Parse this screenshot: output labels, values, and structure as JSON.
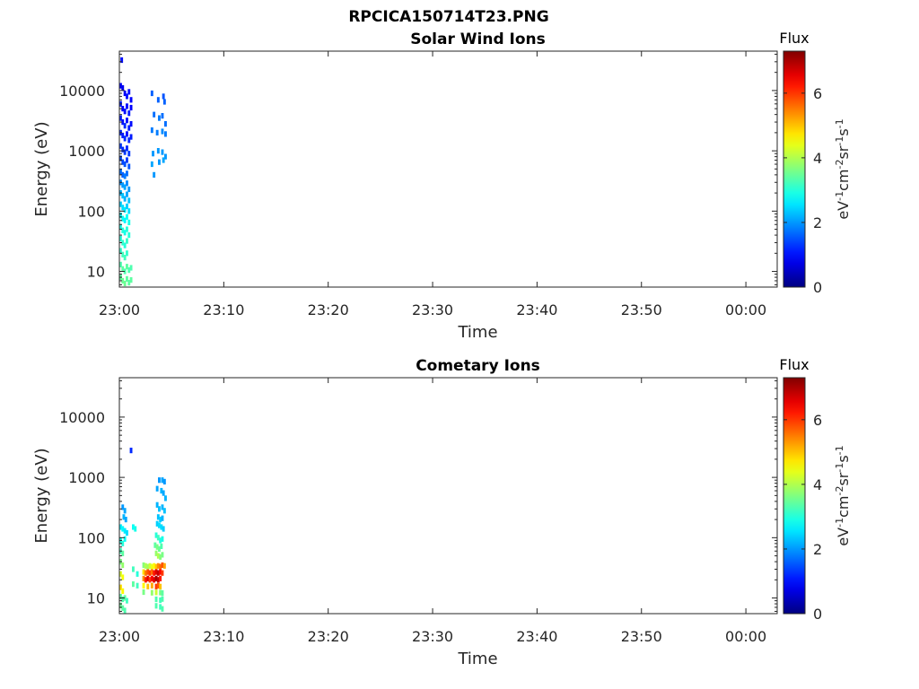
{
  "figure_title": "RPCICA150714T23.PNG",
  "chart_data": [
    {
      "type": "heatmap",
      "title": "Solar Wind Ions",
      "xlabel": "Time",
      "ylabel": "Energy (eV)",
      "x_ticklabels": [
        "23:00",
        "23:10",
        "23:20",
        "23:30",
        "23:40",
        "23:50",
        "00:00"
      ],
      "x_range_minutes": [
        0,
        63
      ],
      "y_scale": "log",
      "y_range": [
        5.5,
        45000
      ],
      "y_ticklabels": [
        "10",
        "100",
        "1000",
        "10000"
      ],
      "colorbar": {
        "title": "Flux",
        "label": "eV-1cm-2sr-1s-1",
        "range": [
          0,
          7.3
        ],
        "ticks": [
          "0",
          "2",
          "4",
          "6"
        ]
      },
      "cells": [
        [
          0.1,
          32000,
          1.0
        ],
        [
          0.0,
          12000,
          0.9
        ],
        [
          0.2,
          11000,
          0.8
        ],
        [
          0.4,
          9000,
          0.9
        ],
        [
          0.6,
          8000,
          1.0
        ],
        [
          0.8,
          9500,
          1.0
        ],
        [
          1.0,
          7000,
          0.9
        ],
        [
          0.0,
          6000,
          1.1
        ],
        [
          0.2,
          5000,
          0.9
        ],
        [
          0.4,
          4500,
          1.0
        ],
        [
          0.6,
          5500,
          1.0
        ],
        [
          0.8,
          4200,
          1.1
        ],
        [
          1.0,
          5200,
          0.9
        ],
        [
          0.0,
          3500,
          1.1
        ],
        [
          0.2,
          3000,
          1.0
        ],
        [
          0.4,
          2600,
          1.2
        ],
        [
          0.6,
          3200,
          1.0
        ],
        [
          0.8,
          2400,
          1.1
        ],
        [
          1.0,
          2800,
          1.0
        ],
        [
          0.0,
          2000,
          1.2
        ],
        [
          0.2,
          1800,
          1.1
        ],
        [
          0.4,
          1600,
          1.2
        ],
        [
          0.6,
          1900,
          1.0
        ],
        [
          0.8,
          1500,
          1.2
        ],
        [
          1.0,
          1700,
          1.1
        ],
        [
          0.0,
          1200,
          1.3
        ],
        [
          0.2,
          1050,
          1.2
        ],
        [
          0.4,
          950,
          1.3
        ],
        [
          0.6,
          1100,
          1.2
        ],
        [
          0.8,
          900,
          1.3
        ],
        [
          0.0,
          750,
          1.4
        ],
        [
          0.2,
          650,
          1.4
        ],
        [
          0.4,
          600,
          1.5
        ],
        [
          0.6,
          700,
          1.3
        ],
        [
          0.8,
          550,
          1.5
        ],
        [
          0.0,
          450,
          1.7
        ],
        [
          0.2,
          400,
          1.6
        ],
        [
          0.4,
          380,
          1.8
        ],
        [
          0.6,
          420,
          1.7
        ],
        [
          0.0,
          300,
          1.9
        ],
        [
          0.2,
          270,
          2.0
        ],
        [
          0.4,
          250,
          2.1
        ],
        [
          0.6,
          290,
          1.9
        ],
        [
          0.8,
          230,
          2.0
        ],
        [
          0.0,
          200,
          2.2
        ],
        [
          0.2,
          180,
          2.3
        ],
        [
          0.4,
          160,
          2.2
        ],
        [
          0.6,
          190,
          2.1
        ],
        [
          0.8,
          150,
          2.3
        ],
        [
          0.0,
          130,
          2.4
        ],
        [
          0.2,
          115,
          2.5
        ],
        [
          0.4,
          105,
          2.6
        ],
        [
          0.6,
          120,
          2.4
        ],
        [
          0.8,
          100,
          2.5
        ],
        [
          0.0,
          85,
          2.7
        ],
        [
          0.2,
          75,
          2.8
        ],
        [
          0.4,
          70,
          2.7
        ],
        [
          0.6,
          80,
          2.8
        ],
        [
          0.8,
          65,
          2.9
        ],
        [
          0.0,
          55,
          2.9
        ],
        [
          0.2,
          48,
          3.0
        ],
        [
          0.4,
          44,
          2.9
        ],
        [
          0.6,
          50,
          3.0
        ],
        [
          0.8,
          40,
          3.0
        ],
        [
          0.0,
          35,
          3.0
        ],
        [
          0.2,
          30,
          3.1
        ],
        [
          0.4,
          27,
          3.0
        ],
        [
          0.6,
          32,
          3.1
        ],
        [
          0.0,
          22,
          3.1
        ],
        [
          0.2,
          19,
          3.2
        ],
        [
          0.4,
          17,
          3.2
        ],
        [
          0.6,
          20,
          3.1
        ],
        [
          0.0,
          13,
          3.3
        ],
        [
          0.2,
          11,
          3.4
        ],
        [
          0.4,
          10,
          3.3
        ],
        [
          0.6,
          12,
          3.4
        ],
        [
          0.8,
          10.5,
          3.3
        ],
        [
          1.0,
          11.5,
          3.3
        ],
        [
          0.0,
          8,
          3.4
        ],
        [
          0.2,
          7,
          3.5
        ],
        [
          0.4,
          6.3,
          3.5
        ],
        [
          0.6,
          7.5,
          3.4
        ],
        [
          0.8,
          6.5,
          3.4
        ],
        [
          1.0,
          7.2,
          3.4
        ],
        [
          3.0,
          9000,
          1.6
        ],
        [
          3.6,
          7000,
          1.6
        ],
        [
          4.1,
          8000,
          1.5
        ],
        [
          4.2,
          6500,
          1.6
        ],
        [
          3.2,
          4000,
          1.7
        ],
        [
          3.7,
          3500,
          1.8
        ],
        [
          4.0,
          3800,
          1.7
        ],
        [
          4.3,
          2800,
          1.7
        ],
        [
          3.0,
          2200,
          1.8
        ],
        [
          3.5,
          2000,
          1.8
        ],
        [
          4.0,
          2100,
          1.9
        ],
        [
          4.3,
          1900,
          1.8
        ],
        [
          3.1,
          900,
          2.0
        ],
        [
          3.6,
          1000,
          2.0
        ],
        [
          4.0,
          950,
          2.0
        ],
        [
          4.3,
          800,
          2.0
        ],
        [
          3.0,
          600,
          2.1
        ],
        [
          3.7,
          650,
          2.0
        ],
        [
          4.1,
          700,
          2.1
        ],
        [
          3.2,
          400,
          2.0
        ]
      ]
    },
    {
      "type": "heatmap",
      "title": "Cometary Ions",
      "xlabel": "Time",
      "ylabel": "Energy (eV)",
      "x_ticklabels": [
        "23:00",
        "23:10",
        "23:20",
        "23:30",
        "23:40",
        "23:50",
        "00:00"
      ],
      "x_range_minutes": [
        0,
        63
      ],
      "y_scale": "log",
      "y_range": [
        5.5,
        45000
      ],
      "y_ticklabels": [
        "10",
        "100",
        "1000",
        "10000"
      ],
      "colorbar": {
        "title": "Flux",
        "label": "eV-1cm-2sr-1s-1",
        "range": [
          0,
          7.3
        ],
        "ticks": [
          "0",
          "2",
          "4",
          "6"
        ]
      },
      "cells": [
        [
          1.0,
          2800,
          1.2
        ],
        [
          0.2,
          320,
          2.0
        ],
        [
          0.4,
          280,
          2.1
        ],
        [
          0.3,
          220,
          2.2
        ],
        [
          0.5,
          200,
          2.1
        ],
        [
          0.0,
          150,
          2.6
        ],
        [
          0.2,
          140,
          2.7
        ],
        [
          0.4,
          130,
          2.6
        ],
        [
          0.6,
          120,
          2.5
        ],
        [
          0.0,
          90,
          2.9
        ],
        [
          0.2,
          80,
          3.0
        ],
        [
          0.4,
          95,
          2.8
        ],
        [
          0.0,
          60,
          3.2
        ],
        [
          0.2,
          55,
          3.4
        ],
        [
          0.0,
          40,
          3.6
        ],
        [
          0.2,
          35,
          3.8
        ],
        [
          0.0,
          25,
          4.3
        ],
        [
          0.2,
          22,
          4.5
        ],
        [
          0.0,
          15,
          4.8
        ],
        [
          0.2,
          13,
          4.6
        ],
        [
          0.0,
          10.5,
          3.4
        ],
        [
          0.2,
          9.5,
          3.3
        ],
        [
          0.4,
          10,
          3.4
        ],
        [
          0.6,
          9,
          3.2
        ],
        [
          0.0,
          7.5,
          3.5
        ],
        [
          0.2,
          6.8,
          3.4
        ],
        [
          0.4,
          6.2,
          3.3
        ],
        [
          1.2,
          150,
          2.8
        ],
        [
          1.4,
          140,
          2.9
        ],
        [
          1.2,
          30,
          3.2
        ],
        [
          1.6,
          25,
          3.0
        ],
        [
          1.2,
          17,
          3.4
        ],
        [
          1.6,
          16,
          3.2
        ],
        [
          3.7,
          900,
          2.0
        ],
        [
          4.0,
          900,
          2.1
        ],
        [
          4.2,
          850,
          2.0
        ],
        [
          3.5,
          650,
          2.1
        ],
        [
          3.9,
          600,
          2.2
        ],
        [
          4.1,
          550,
          2.1
        ],
        [
          4.3,
          450,
          2.2
        ],
        [
          3.5,
          350,
          2.2
        ],
        [
          3.7,
          300,
          2.3
        ],
        [
          4.0,
          320,
          2.2
        ],
        [
          4.2,
          280,
          2.3
        ],
        [
          3.6,
          220,
          2.3
        ],
        [
          3.8,
          200,
          2.4
        ],
        [
          4.0,
          210,
          2.2
        ],
        [
          3.5,
          170,
          2.4
        ],
        [
          3.7,
          160,
          2.5
        ],
        [
          3.9,
          150,
          2.5
        ],
        [
          4.1,
          140,
          2.4
        ],
        [
          3.4,
          110,
          3.0
        ],
        [
          3.6,
          100,
          3.2
        ],
        [
          3.8,
          90,
          3.0
        ],
        [
          4.0,
          95,
          2.9
        ],
        [
          3.3,
          75,
          3.4
        ],
        [
          3.5,
          70,
          3.6
        ],
        [
          3.7,
          65,
          3.5
        ],
        [
          3.9,
          72,
          3.3
        ],
        [
          3.4,
          55,
          3.8
        ],
        [
          3.6,
          50,
          4.0
        ],
        [
          3.8,
          48,
          3.7
        ],
        [
          4.0,
          52,
          3.6
        ],
        [
          2.2,
          35,
          3.7
        ],
        [
          2.4,
          34,
          4.0
        ],
        [
          2.6,
          33,
          3.9
        ],
        [
          2.8,
          34,
          4.2
        ],
        [
          3.0,
          33,
          4.4
        ],
        [
          3.2,
          34,
          4.6
        ],
        [
          3.4,
          33,
          5.0
        ],
        [
          3.6,
          34,
          5.4
        ],
        [
          3.8,
          33,
          5.6
        ],
        [
          4.0,
          35,
          5.8
        ],
        [
          4.2,
          34,
          5.2
        ],
        [
          2.2,
          27,
          4.8
        ],
        [
          2.4,
          26,
          5.5
        ],
        [
          2.6,
          27,
          5.8
        ],
        [
          2.8,
          26,
          6.0
        ],
        [
          3.0,
          27,
          5.6
        ],
        [
          3.2,
          26,
          6.2
        ],
        [
          3.4,
          27,
          6.6
        ],
        [
          3.6,
          26,
          6.8
        ],
        [
          3.8,
          27,
          6.4
        ],
        [
          4.0,
          26,
          6.0
        ],
        [
          2.2,
          21,
          5.4
        ],
        [
          2.4,
          20,
          6.2
        ],
        [
          2.6,
          21,
          6.6
        ],
        [
          2.8,
          20,
          6.0
        ],
        [
          3.0,
          21,
          6.4
        ],
        [
          3.2,
          20,
          6.6
        ],
        [
          3.4,
          21,
          7.0
        ],
        [
          3.6,
          20,
          6.8
        ],
        [
          3.8,
          21,
          6.2
        ],
        [
          2.2,
          16,
          4.6
        ],
        [
          2.6,
          15.5,
          5.0
        ],
        [
          3.0,
          16,
          5.2
        ],
        [
          3.4,
          15.5,
          6.0
        ],
        [
          3.6,
          16,
          5.8
        ],
        [
          3.8,
          15.5,
          5.0
        ],
        [
          2.2,
          12.5,
          3.6
        ],
        [
          3.0,
          12.2,
          3.8
        ],
        [
          3.4,
          12.4,
          4.2
        ],
        [
          3.8,
          12.3,
          3.6
        ],
        [
          4.0,
          12.1,
          3.4
        ],
        [
          3.4,
          9.5,
          3.3
        ],
        [
          3.8,
          9.2,
          3.2
        ],
        [
          4.0,
          9.6,
          3.3
        ],
        [
          3.4,
          7.4,
          3.3
        ],
        [
          3.8,
          7.1,
          3.2
        ],
        [
          4.0,
          6.6,
          3.3
        ]
      ]
    }
  ]
}
